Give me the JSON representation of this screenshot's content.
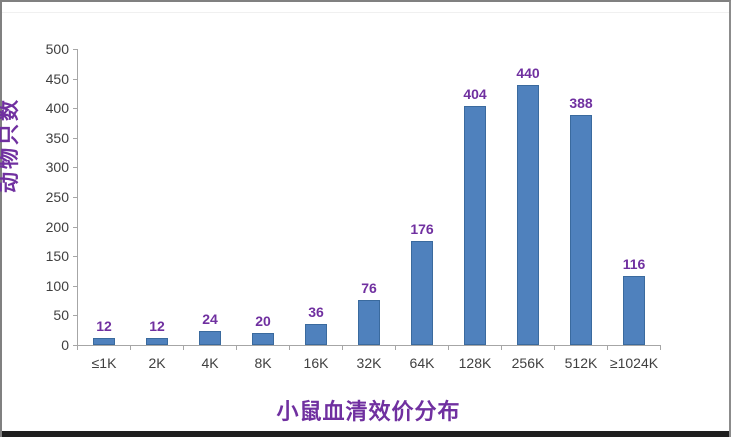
{
  "chart_data": {
    "type": "bar",
    "categories": [
      "≤1K",
      "2K",
      "4K",
      "8K",
      "16K",
      "32K",
      "64K",
      "128K",
      "256K",
      "512K",
      "≥1024K"
    ],
    "values": [
      12,
      12,
      24,
      20,
      36,
      76,
      176,
      404,
      440,
      388,
      116
    ],
    "title": "",
    "xlabel": "小鼠血清效价分布",
    "ylabel": "动物只数",
    "ylim": [
      0,
      500
    ],
    "yticks": [
      0,
      50,
      100,
      150,
      200,
      250,
      300,
      350,
      400,
      450,
      500
    ],
    "grid": false,
    "legend": null,
    "data_labels": true,
    "colors": {
      "bar_fill": "#4f81bd",
      "bar_border": "#3a6a9e",
      "data_label": "#7030a0",
      "axis_title": "#7030a0",
      "axis_line": "#a6a6a6",
      "tick_label": "#404040"
    }
  },
  "window": {
    "frame_color": "#808080",
    "bottom_bar_color": "#1f1f1f"
  }
}
